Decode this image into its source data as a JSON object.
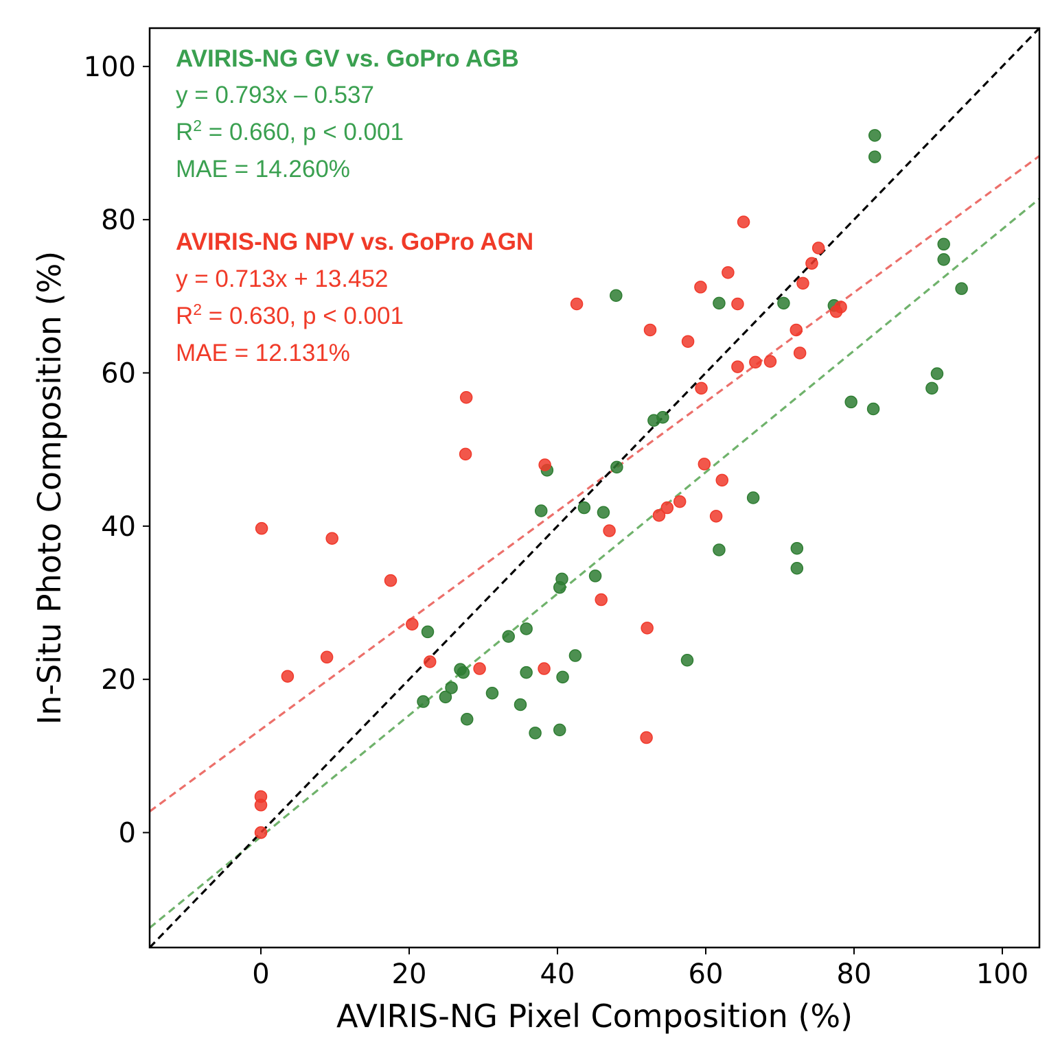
{
  "chart_data": {
    "type": "scatter",
    "xlabel": "AVIRIS-NG Pixel Composition (%)",
    "ylabel": "In-Situ Photo Composition (%)",
    "xlim": [
      -15,
      105
    ],
    "ylim": [
      -15,
      105
    ],
    "xticks": [
      0,
      20,
      40,
      60,
      80,
      100
    ],
    "yticks": [
      0,
      20,
      40,
      60,
      80,
      100
    ],
    "xtick_labels": [
      "0",
      "20",
      "40",
      "60",
      "80",
      "100"
    ],
    "ytick_labels": [
      "0",
      "20",
      "40",
      "60",
      "80",
      "100"
    ],
    "grid": false,
    "colors": {
      "gv_points": "#2e7d32",
      "npv_points": "#f0392b",
      "gv_text": "#3aa050",
      "npv_text": "#f03a28",
      "gv_fit": "#6fb26b",
      "npv_fit": "#ec6f6a",
      "one_to_one": "#000000"
    },
    "series": [
      {
        "name": "AVIRIS-NG GV vs. GoPro AGB",
        "color_key": "gv",
        "fit": {
          "slope": 0.793,
          "intercept": -0.537
        },
        "points": [
          [
            82.8,
            91.0
          ],
          [
            82.8,
            88.2
          ],
          [
            92.1,
            76.8
          ],
          [
            92.1,
            74.8
          ],
          [
            94.5,
            71.0
          ],
          [
            47.9,
            70.1
          ],
          [
            61.8,
            69.1
          ],
          [
            70.5,
            69.1
          ],
          [
            77.3,
            68.8
          ],
          [
            91.2,
            59.9
          ],
          [
            90.5,
            58.0
          ],
          [
            79.6,
            56.2
          ],
          [
            82.6,
            55.3
          ],
          [
            53.0,
            53.8
          ],
          [
            54.2,
            54.2
          ],
          [
            38.6,
            47.3
          ],
          [
            48.0,
            47.7
          ],
          [
            37.8,
            42.0
          ],
          [
            43.6,
            42.4
          ],
          [
            46.2,
            41.8
          ],
          [
            66.4,
            43.7
          ],
          [
            61.8,
            36.9
          ],
          [
            72.3,
            37.1
          ],
          [
            72.3,
            34.5
          ],
          [
            40.6,
            33.1
          ],
          [
            45.1,
            33.5
          ],
          [
            40.3,
            32.0
          ],
          [
            22.5,
            26.2
          ],
          [
            35.8,
            26.6
          ],
          [
            33.4,
            25.6
          ],
          [
            42.4,
            23.1
          ],
          [
            57.5,
            22.5
          ],
          [
            26.9,
            21.3
          ],
          [
            27.3,
            20.9
          ],
          [
            35.8,
            20.9
          ],
          [
            40.7,
            20.3
          ],
          [
            25.7,
            18.9
          ],
          [
            24.9,
            17.7
          ],
          [
            21.9,
            17.1
          ],
          [
            31.2,
            18.2
          ],
          [
            35.0,
            16.7
          ],
          [
            27.8,
            14.8
          ],
          [
            37.0,
            13.0
          ],
          [
            40.3,
            13.4
          ]
        ]
      },
      {
        "name": "AVIRIS-NG NPV vs. GoPro AGN",
        "color_key": "npv",
        "fit": {
          "slope": 0.713,
          "intercept": 13.452
        },
        "points": [
          [
            65.1,
            79.7
          ],
          [
            75.2,
            76.3
          ],
          [
            74.3,
            74.3
          ],
          [
            63.0,
            73.1
          ],
          [
            73.1,
            71.7
          ],
          [
            59.3,
            71.2
          ],
          [
            42.6,
            69.0
          ],
          [
            64.3,
            69.0
          ],
          [
            78.2,
            68.6
          ],
          [
            77.6,
            68.0
          ],
          [
            52.5,
            65.6
          ],
          [
            72.2,
            65.6
          ],
          [
            57.6,
            64.1
          ],
          [
            72.7,
            62.6
          ],
          [
            66.7,
            61.4
          ],
          [
            68.7,
            61.5
          ],
          [
            64.3,
            60.8
          ],
          [
            59.4,
            58.0
          ],
          [
            27.7,
            56.8
          ],
          [
            27.6,
            49.4
          ],
          [
            38.3,
            48.0
          ],
          [
            59.8,
            48.1
          ],
          [
            62.2,
            46.0
          ],
          [
            56.5,
            43.2
          ],
          [
            54.8,
            42.4
          ],
          [
            53.7,
            41.4
          ],
          [
            61.4,
            41.3
          ],
          [
            47.0,
            39.4
          ],
          [
            0.1,
            39.7
          ],
          [
            9.6,
            38.4
          ],
          [
            17.5,
            32.9
          ],
          [
            45.9,
            30.4
          ],
          [
            20.4,
            27.2
          ],
          [
            52.1,
            26.7
          ],
          [
            22.8,
            22.3
          ],
          [
            8.9,
            22.9
          ],
          [
            29.5,
            21.4
          ],
          [
            38.2,
            21.4
          ],
          [
            3.6,
            20.4
          ],
          [
            52.0,
            12.4
          ],
          [
            0.0,
            4.7
          ],
          [
            0.0,
            3.6
          ],
          [
            0.0,
            0.0
          ]
        ]
      }
    ],
    "reference_line": {
      "name": "1:1 line",
      "slope": 1,
      "intercept": 0
    },
    "annotations": {
      "gv": {
        "title": "AVIRIS-NG GV vs. GoPro AGB",
        "equation": "y = 0.793x – 0.537",
        "r2_prefix": "R",
        "r2_sup": "2",
        "r2_rest": " = 0.660, p < 0.001",
        "mae": "MAE = 14.260%"
      },
      "npv": {
        "title": "AVIRIS-NG NPV vs. GoPro AGN",
        "equation": "y = 0.713x + 13.452",
        "r2_prefix": "R",
        "r2_sup": "2",
        "r2_rest": " = 0.630, p < 0.001",
        "mae": "MAE = 12.131%"
      }
    }
  }
}
